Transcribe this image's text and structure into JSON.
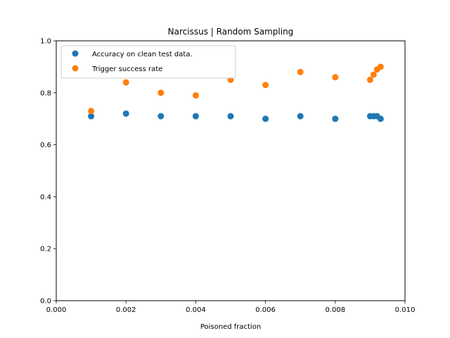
{
  "chart_data": {
    "type": "scatter",
    "title": "Narcissus | Random Sampling",
    "xlabel": "Poisoned fraction",
    "ylabel": "",
    "xlim": [
      0.0,
      0.01
    ],
    "ylim": [
      0.0,
      1.0
    ],
    "xticks": [
      "0.000",
      "0.002",
      "0.004",
      "0.006",
      "0.008",
      "0.010"
    ],
    "yticks": [
      "0.0",
      "0.2",
      "0.4",
      "0.6",
      "0.8",
      "1.0"
    ],
    "grid": false,
    "legend_position": "upper-left",
    "series": [
      {
        "name": "Accuracy on clean test data.",
        "color": "#1f77b4",
        "x": [
          0.001,
          0.002,
          0.003,
          0.004,
          0.005,
          0.006,
          0.007,
          0.008,
          0.009,
          0.0091,
          0.0092,
          0.0093
        ],
        "y": [
          0.71,
          0.72,
          0.71,
          0.71,
          0.71,
          0.7,
          0.71,
          0.7,
          0.71,
          0.71,
          0.71,
          0.7
        ]
      },
      {
        "name": "Trigger success rate",
        "color": "#ff7f0e",
        "x": [
          0.001,
          0.002,
          0.003,
          0.004,
          0.005,
          0.006,
          0.007,
          0.008,
          0.009,
          0.0091,
          0.0092,
          0.0093
        ],
        "y": [
          0.73,
          0.84,
          0.8,
          0.79,
          0.85,
          0.83,
          0.88,
          0.86,
          0.85,
          0.87,
          0.89,
          0.9
        ]
      }
    ]
  }
}
